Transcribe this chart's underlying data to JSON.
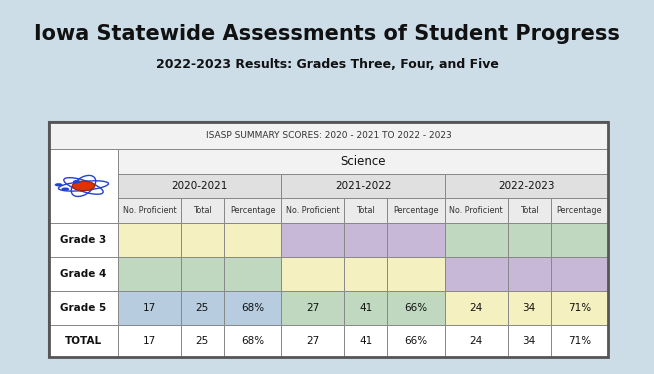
{
  "title": "Iowa Statewide Assessments of Student Progress",
  "subtitle": "2022-2023 Results: Grades Three, Four, and Five",
  "bg_color": "#ccdde8",
  "table_title": "ISASP SUMMARY SCORES: 2020 - 2021 TO 2022 - 2023",
  "science_label": "Science",
  "year_headers": [
    "2020-2021",
    "2021-2022",
    "2022-2023"
  ],
  "col_headers": [
    "No. Proficient",
    "Total",
    "Percentage"
  ],
  "row_labels": [
    "Grade 3",
    "Grade 4",
    "Grade 5",
    "TOTAL"
  ],
  "data": [
    [
      "",
      "",
      "",
      "",
      "",
      "",
      "",
      "",
      ""
    ],
    [
      "",
      "",
      "",
      "",
      "",
      "",
      "",
      "",
      ""
    ],
    [
      "17",
      "25",
      "68%",
      "27",
      "41",
      "66%",
      "24",
      "34",
      "71%"
    ],
    [
      "17",
      "25",
      "68%",
      "27",
      "41",
      "66%",
      "24",
      "34",
      "71%"
    ]
  ],
  "cell_colors": {
    "grade3": [
      "#f5f0c0",
      "#f5f0c0",
      "#f5f0c0",
      "#c8b8d8",
      "#c8b8d8",
      "#c8b8d8",
      "#c0d8c0",
      "#c0d8c0",
      "#c0d8c0"
    ],
    "grade4": [
      "#c0d8c0",
      "#c0d8c0",
      "#c0d8c0",
      "#f5f0c0",
      "#f5f0c0",
      "#f5f0c0",
      "#c8b8d8",
      "#c8b8d8",
      "#c8b8d8"
    ],
    "grade5": [
      "#b8cce0",
      "#b8cce0",
      "#b8cce0",
      "#c0d8c0",
      "#c0d8c0",
      "#c0d8c0",
      "#f5f0c0",
      "#f5f0c0",
      "#f5f0c0"
    ],
    "total": [
      "#ffffff",
      "#ffffff",
      "#ffffff",
      "#ffffff",
      "#ffffff",
      "#ffffff",
      "#ffffff",
      "#ffffff",
      "#ffffff"
    ]
  },
  "title_fontsize": 15,
  "subtitle_fontsize": 9,
  "table_title_fontsize": 6.5,
  "year_fontsize": 7.5,
  "col_header_fontsize": 5.8,
  "row_label_fontsize": 7.5,
  "data_fontsize": 7.5
}
